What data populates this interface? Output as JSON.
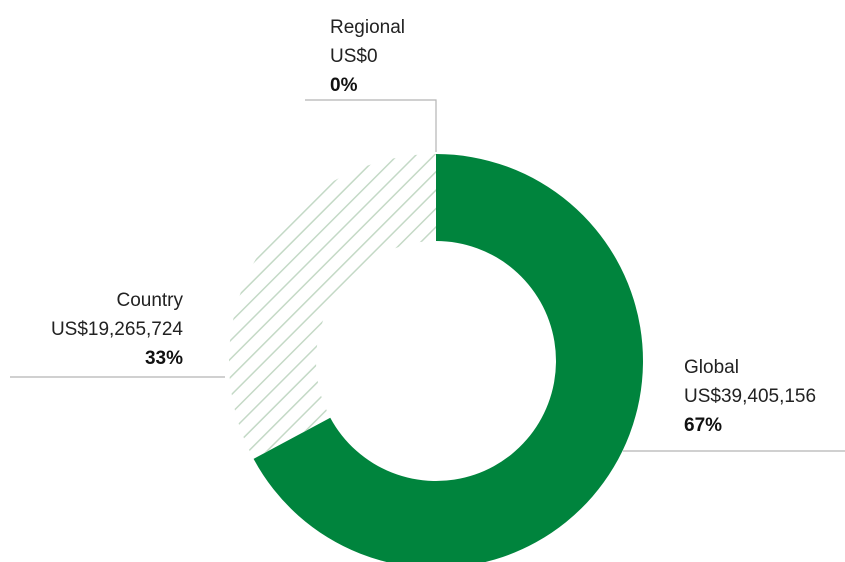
{
  "chart_data": {
    "type": "pie",
    "categories": [
      "Global",
      "Country",
      "Regional"
    ],
    "values": [
      39405156,
      19265724,
      0
    ],
    "value_labels": [
      "US$39,405,156",
      "US$19,265,724",
      "US$0"
    ],
    "percentages": [
      67,
      33,
      0
    ],
    "percentage_labels": [
      "67%",
      "33%",
      "0%"
    ],
    "colors": [
      "#00843d",
      "#c4d9c6",
      "#c4d9c6"
    ],
    "patterns": [
      "solid",
      "hatch",
      "hatch"
    ]
  }
}
